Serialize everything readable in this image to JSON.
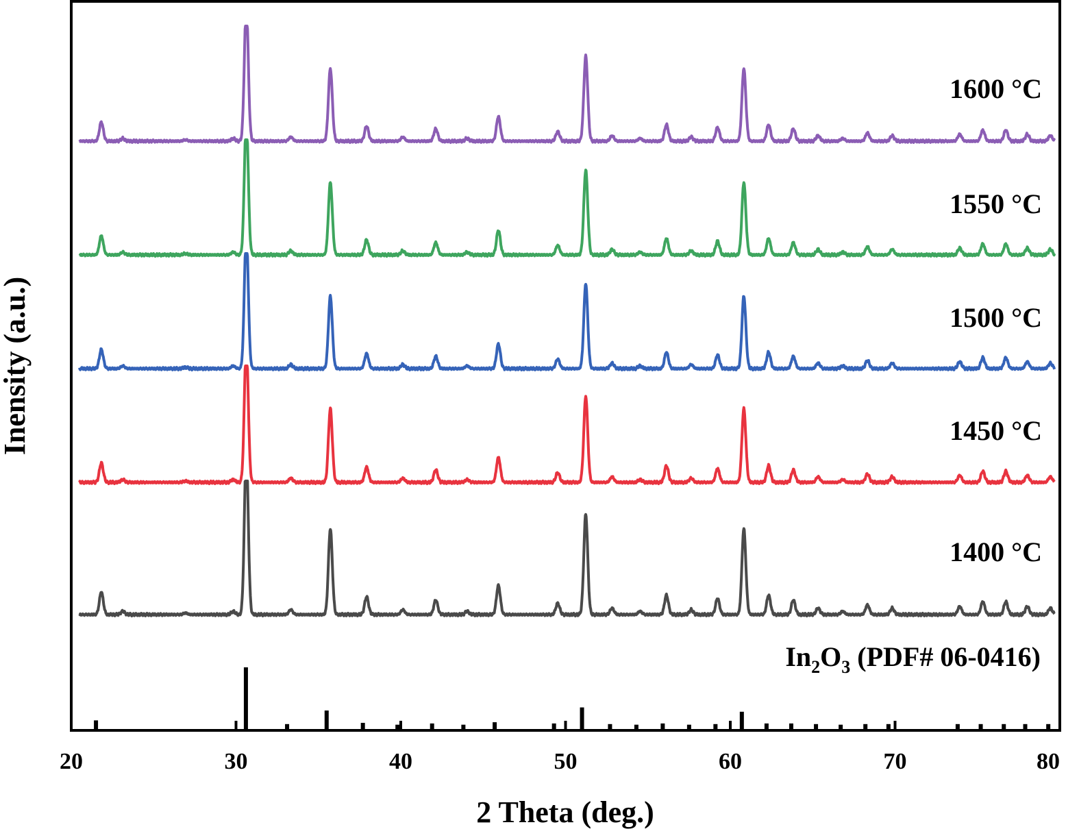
{
  "chart_data": {
    "type": "line",
    "xlabel": "2 Theta (deg.)",
    "ylabel": "Inensity (a.u.)",
    "xlim": [
      20,
      80
    ],
    "x_ticks": [
      "20",
      "30",
      "40",
      "50",
      "60",
      "70",
      "80"
    ],
    "y_ticks": [],
    "grid": false,
    "legend": "none",
    "reference": {
      "label": "In",
      "sub1": "2",
      "mid": "O",
      "sub2": "3",
      "tail": " (PDF# 06-0416)",
      "color": "#000000",
      "lines": [
        {
          "x": 21.5,
          "i": 14
        },
        {
          "x": 30.6,
          "i": 100
        },
        {
          "x": 33.1,
          "i": 8
        },
        {
          "x": 35.5,
          "i": 30
        },
        {
          "x": 37.7,
          "i": 10
        },
        {
          "x": 39.8,
          "i": 7
        },
        {
          "x": 41.9,
          "i": 9
        },
        {
          "x": 43.8,
          "i": 7
        },
        {
          "x": 45.7,
          "i": 11
        },
        {
          "x": 49.3,
          "i": 9
        },
        {
          "x": 51.0,
          "i": 35
        },
        {
          "x": 52.7,
          "i": 8
        },
        {
          "x": 54.3,
          "i": 7
        },
        {
          "x": 55.9,
          "i": 9
        },
        {
          "x": 57.5,
          "i": 7
        },
        {
          "x": 59.1,
          "i": 8
        },
        {
          "x": 60.7,
          "i": 28
        },
        {
          "x": 62.2,
          "i": 9
        },
        {
          "x": 63.7,
          "i": 9
        },
        {
          "x": 65.2,
          "i": 8
        },
        {
          "x": 66.7,
          "i": 7
        },
        {
          "x": 68.2,
          "i": 8
        },
        {
          "x": 69.6,
          "i": 8
        },
        {
          "x": 73.8,
          "i": 8
        },
        {
          "x": 75.2,
          "i": 8
        },
        {
          "x": 76.6,
          "i": 8
        },
        {
          "x": 77.9,
          "i": 8
        },
        {
          "x": 79.3,
          "i": 8
        }
      ]
    },
    "series": [
      {
        "name": "1400 °C",
        "color": "#4a4a4a"
      },
      {
        "name": "1450 °C",
        "color": "#e8333f"
      },
      {
        "name": "1500 °C",
        "color": "#3563b8"
      },
      {
        "name": "1550 °C",
        "color": "#3ea55e"
      },
      {
        "name": "1600 °C",
        "color": "#8b5db4"
      }
    ],
    "peaks": [
      {
        "x": 21.8,
        "i": 14
      },
      {
        "x": 23.1,
        "i": 2
      },
      {
        "x": 26.9,
        "i": 1
      },
      {
        "x": 29.8,
        "i": 2
      },
      {
        "x": 30.6,
        "i": 100
      },
      {
        "x": 33.3,
        "i": 3
      },
      {
        "x": 35.7,
        "i": 53
      },
      {
        "x": 37.9,
        "i": 11
      },
      {
        "x": 40.1,
        "i": 3
      },
      {
        "x": 42.1,
        "i": 9
      },
      {
        "x": 44.0,
        "i": 2
      },
      {
        "x": 45.9,
        "i": 18
      },
      {
        "x": 49.5,
        "i": 7
      },
      {
        "x": 51.2,
        "i": 62
      },
      {
        "x": 52.8,
        "i": 4
      },
      {
        "x": 54.5,
        "i": 2
      },
      {
        "x": 56.1,
        "i": 12
      },
      {
        "x": 57.6,
        "i": 3
      },
      {
        "x": 59.2,
        "i": 10
      },
      {
        "x": 60.8,
        "i": 53
      },
      {
        "x": 62.3,
        "i": 12
      },
      {
        "x": 63.8,
        "i": 9
      },
      {
        "x": 65.3,
        "i": 4
      },
      {
        "x": 66.8,
        "i": 2
      },
      {
        "x": 68.3,
        "i": 6
      },
      {
        "x": 69.8,
        "i": 4
      },
      {
        "x": 73.9,
        "i": 5
      },
      {
        "x": 75.3,
        "i": 8
      },
      {
        "x": 76.7,
        "i": 8
      },
      {
        "x": 78.0,
        "i": 5
      },
      {
        "x": 79.4,
        "i": 4
      }
    ]
  }
}
